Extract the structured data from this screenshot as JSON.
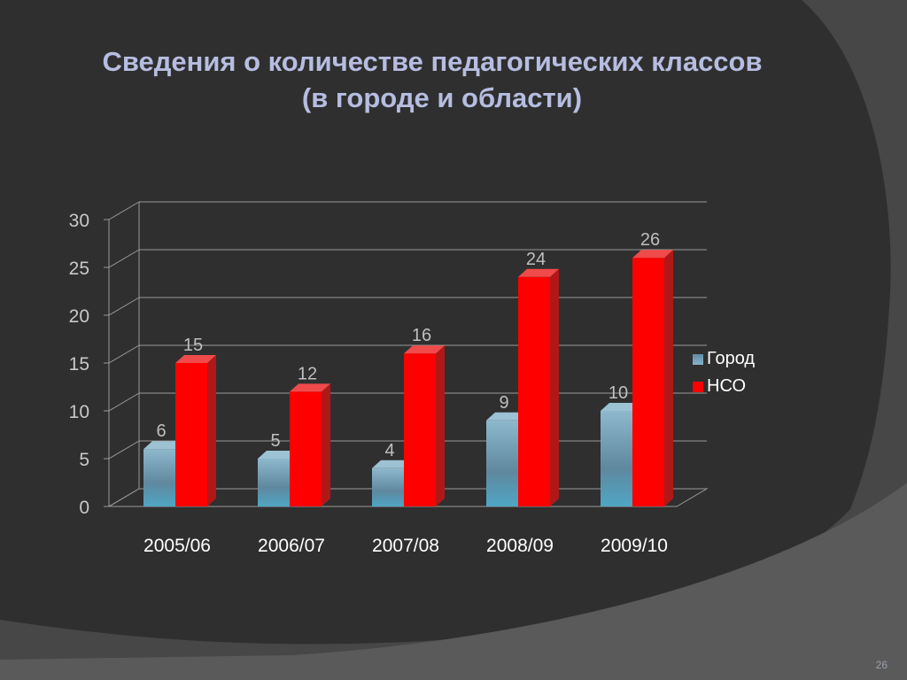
{
  "slide": {
    "title_line1": "Сведения о количестве педагогических классов",
    "title_line2": "(в городе и области)",
    "page_number": "26"
  },
  "colors": {
    "background_dark": "#2f2f2f",
    "background_light": "#474747",
    "title": "#b6bde0",
    "series_gorod": "#6f9bb3",
    "series_nso": "#ff0000"
  },
  "chart_data": {
    "type": "bar",
    "title": "",
    "xlabel": "",
    "ylabel": "",
    "categories": [
      "2005/06",
      "2006/07",
      "2007/08",
      "2008/09",
      "2009/10"
    ],
    "series": [
      {
        "name": "Город",
        "values": [
          6,
          5,
          4,
          9,
          10
        ]
      },
      {
        "name": "НСО",
        "values": [
          15,
          12,
          16,
          24,
          26
        ]
      }
    ],
    "ylim": [
      0,
      30
    ],
    "yticks": [
      0,
      5,
      10,
      15,
      20,
      25,
      30
    ],
    "grid": true,
    "legend": "right",
    "data_labels": true
  }
}
